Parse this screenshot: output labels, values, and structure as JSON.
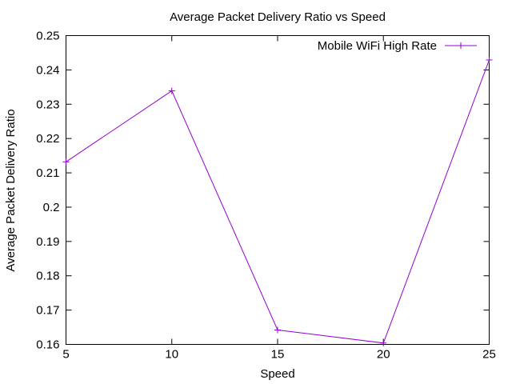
{
  "chart_data": {
    "type": "line",
    "title": "Average Packet Delivery Ratio vs Speed",
    "xlabel": "Speed",
    "ylabel": "Average Packet Delivery Ratio",
    "xlim": [
      5,
      25
    ],
    "ylim": [
      0.16,
      0.25
    ],
    "x_ticks": [
      5,
      10,
      15,
      20,
      25
    ],
    "y_ticks": [
      "0.16",
      "0.17",
      "0.18",
      "0.19",
      "0.2",
      "0.21",
      "0.22",
      "0.23",
      "0.24",
      "0.25"
    ],
    "legend_position": "top-right",
    "grid": false,
    "series": [
      {
        "name": "Mobile WiFi High Rate",
        "color": "#9400d3",
        "marker": "plus",
        "x": [
          5,
          10,
          15,
          20,
          25
        ],
        "y": [
          0.2132,
          0.2339,
          0.1642,
          0.1604,
          0.2429
        ]
      }
    ]
  }
}
